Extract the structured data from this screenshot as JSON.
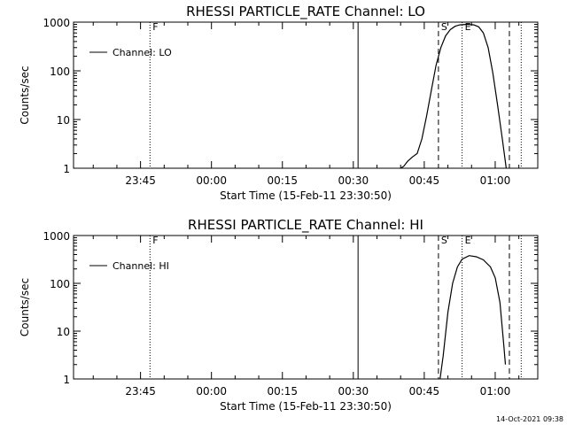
{
  "footer": {
    "timestamp": "14-Oct-2021 09:38"
  },
  "chart_data": [
    {
      "type": "line",
      "title": "RHESSI PARTICLE_RATE Channel: LO",
      "xlabel": "Start Time (15-Feb-11 23:30:50)",
      "ylabel": "Counts/sec",
      "y_scale": "log",
      "ylim": [
        1,
        1000
      ],
      "xlim": [
        "23:30:50",
        "01:09:00"
      ],
      "x_ticks": [
        "23:45",
        "00:00",
        "00:15",
        "00:30",
        "00:45",
        "01:00"
      ],
      "y_ticks": [
        "1",
        "10",
        "100",
        "1000"
      ],
      "legend": {
        "label": "Channel: LO",
        "position": "top-left"
      },
      "series": [
        {
          "name": "Channel: LO",
          "points": [
            {
              "x": "00:40:00",
              "y": 1.0
            },
            {
              "x": "00:40:40",
              "y": 1.1
            },
            {
              "x": "00:41:30",
              "y": 1.4
            },
            {
              "x": "00:42:30",
              "y": 1.7
            },
            {
              "x": "00:43:30",
              "y": 2.0
            },
            {
              "x": "00:44:30",
              "y": 4
            },
            {
              "x": "00:45:30",
              "y": 12
            },
            {
              "x": "00:46:30",
              "y": 40
            },
            {
              "x": "00:47:30",
              "y": 130
            },
            {
              "x": "00:48:30",
              "y": 300
            },
            {
              "x": "00:49:30",
              "y": 520
            },
            {
              "x": "00:50:30",
              "y": 700
            },
            {
              "x": "00:51:30",
              "y": 820
            },
            {
              "x": "00:52:30",
              "y": 880
            },
            {
              "x": "00:54:00",
              "y": 900
            },
            {
              "x": "00:55:30",
              "y": 880
            },
            {
              "x": "00:56:30",
              "y": 800
            },
            {
              "x": "00:57:30",
              "y": 600
            },
            {
              "x": "00:58:30",
              "y": 300
            },
            {
              "x": "00:59:30",
              "y": 90
            },
            {
              "x": "01:00:30",
              "y": 20
            },
            {
              "x": "01:01:30",
              "y": 4
            },
            {
              "x": "01:02:20",
              "y": 1.0
            }
          ]
        }
      ],
      "markers": [
        {
          "x": "23:47:00",
          "style": "dotted",
          "label": "F"
        },
        {
          "x": "00:31:00",
          "style": "solid",
          "label": ""
        },
        {
          "x": "00:48:00",
          "style": "dashed",
          "label": "S"
        },
        {
          "x": "00:53:00",
          "style": "dotted",
          "label": "E"
        },
        {
          "x": "01:03:00",
          "style": "dashed",
          "label": ""
        },
        {
          "x": "01:05:30",
          "style": "dotted",
          "label": ""
        }
      ]
    },
    {
      "type": "line",
      "title": "RHESSI PARTICLE_RATE Channel: HI",
      "xlabel": "Start Time (15-Feb-11 23:30:50)",
      "ylabel": "Counts/sec",
      "y_scale": "log",
      "ylim": [
        1,
        1000
      ],
      "xlim": [
        "23:30:50",
        "01:09:00"
      ],
      "x_ticks": [
        "23:45",
        "00:00",
        "00:15",
        "00:30",
        "00:45",
        "01:00"
      ],
      "y_ticks": [
        "1",
        "10",
        "100",
        "1000"
      ],
      "legend": {
        "label": "Channel: HI",
        "position": "top-left"
      },
      "series": [
        {
          "name": "Channel: HI",
          "points": [
            {
              "x": "00:48:20",
              "y": 1.0
            },
            {
              "x": "00:49:00",
              "y": 3
            },
            {
              "x": "00:50:00",
              "y": 25
            },
            {
              "x": "00:51:00",
              "y": 100
            },
            {
              "x": "00:52:00",
              "y": 220
            },
            {
              "x": "00:53:00",
              "y": 320
            },
            {
              "x": "00:54:30",
              "y": 380
            },
            {
              "x": "00:56:00",
              "y": 360
            },
            {
              "x": "00:57:30",
              "y": 310
            },
            {
              "x": "00:59:00",
              "y": 220
            },
            {
              "x": "01:00:00",
              "y": 130
            },
            {
              "x": "01:01:00",
              "y": 40
            },
            {
              "x": "01:01:50",
              "y": 5
            },
            {
              "x": "01:02:10",
              "y": 2
            }
          ]
        }
      ],
      "markers": [
        {
          "x": "23:47:00",
          "style": "dotted",
          "label": "F"
        },
        {
          "x": "00:31:00",
          "style": "solid",
          "label": ""
        },
        {
          "x": "00:48:00",
          "style": "dashed",
          "label": "S"
        },
        {
          "x": "00:53:00",
          "style": "dotted",
          "label": "E"
        },
        {
          "x": "01:03:00",
          "style": "dashed",
          "label": ""
        },
        {
          "x": "01:05:30",
          "style": "dotted",
          "label": ""
        }
      ]
    }
  ]
}
